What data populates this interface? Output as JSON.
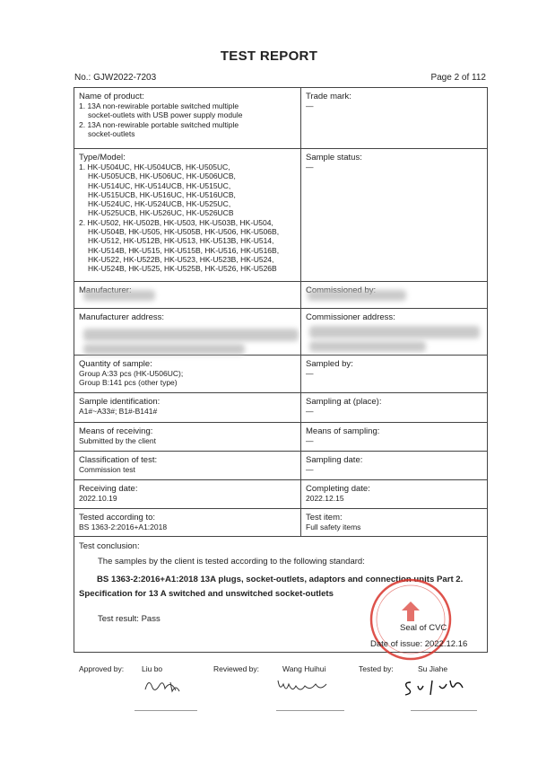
{
  "header": {
    "title": "TEST REPORT",
    "report_no": "No.: GJW2022-7203",
    "page": "Page 2 of 112"
  },
  "table": {
    "rows": [
      [
        {
          "label": "Name of product:",
          "lines": [
            "1. 13A non-rewirable portable switched multiple",
            "socket-outlets with USB power supply module",
            "2. 13A non-rewirable portable switched multiple",
            "socket-outlets"
          ]
        },
        {
          "label": "Trade mark:",
          "lines": [
            "—"
          ]
        }
      ],
      [
        {
          "label": "Type/Model:",
          "lines": [
            "1. HK-U504UC, HK-U504UCB, HK-U505UC,",
            "HK-U505UCB, HK-U506UC, HK-U506UCB,",
            "HK-U514UC, HK-U514UCB, HK-U515UC,",
            "HK-U515UCB, HK-U516UC, HK-U516UCB,",
            "HK-U524UC, HK-U524UCB, HK-U525UC,",
            "HK-U525UCB, HK-U526UC, HK-U526UCB",
            "2. HK-U502, HK-U502B, HK-U503, HK-U503B, HK-U504,",
            "HK-U504B, HK-U505, HK-U505B, HK-U506, HK-U506B,",
            "HK-U512, HK-U512B, HK-U513, HK-U513B, HK-U514,",
            "HK-U514B, HK-U515, HK-U515B, HK-U516, HK-U516B,",
            "HK-U522, HK-U522B, HK-U523, HK-U523B, HK-U524,",
            "HK-U524B, HK-U525, HK-U525B, HK-U526, HK-U526B"
          ]
        },
        {
          "label": "Sample status:",
          "lines": [
            "—"
          ]
        }
      ],
      [
        {
          "label": "Manufacturer:",
          "lines": []
        },
        {
          "label": "Commissioned by:",
          "lines": []
        }
      ],
      [
        {
          "label": "Manufacturer address:",
          "lines": []
        },
        {
          "label": "Commissioner address:",
          "lines": []
        }
      ],
      [
        {
          "label": "Quantity of sample:",
          "lines": [
            "Group A:33 pcs (HK-U506UC);",
            "Group B:141 pcs (other type)"
          ]
        },
        {
          "label": "Sampled by:",
          "lines": [
            "—"
          ]
        }
      ],
      [
        {
          "label": "Sample identification:",
          "lines": [
            "A1#~A33#; B1#-B141#"
          ]
        },
        {
          "label": "Sampling at (place):",
          "lines": [
            "—"
          ]
        }
      ],
      [
        {
          "label": "Means of receiving:",
          "lines": [
            "Submitted by the client"
          ]
        },
        {
          "label": "Means of sampling:",
          "lines": [
            "—"
          ]
        }
      ],
      [
        {
          "label": "Classification of test:",
          "lines": [
            "Commission test"
          ]
        },
        {
          "label": "Sampling date:",
          "lines": [
            "—"
          ]
        }
      ],
      [
        {
          "label": "Receiving date:",
          "lines": [
            "2022.10.19"
          ]
        },
        {
          "label": "Completing date:",
          "lines": [
            "2022.12.15"
          ]
        }
      ],
      [
        {
          "label": "Tested according to:",
          "lines": [
            "BS 1363-2:2016+A1:2018"
          ]
        },
        {
          "label": "Test item:",
          "lines": [
            "Full safety items"
          ]
        }
      ]
    ]
  },
  "conclusion": {
    "label": "Test conclusion:",
    "intro": "The samples by the client is tested according to the following standard:",
    "standard": "BS 1363-2:2016+A1:2018 13A plugs, socket-outlets, adaptors and connection units Part 2. Specification for 13 A switched and unswitched socket-outlets",
    "result": "Test result: Pass",
    "seal": "Seal of CVC",
    "date_of_issue": "Date of issue: 2022.12.16"
  },
  "signatures": [
    {
      "role": "Approved by:",
      "name": "Liu bo"
    },
    {
      "role": "Reviewed by:",
      "name": "Wang Huihui"
    },
    {
      "role": "Tested by:",
      "name": "Su Jiahe"
    }
  ]
}
